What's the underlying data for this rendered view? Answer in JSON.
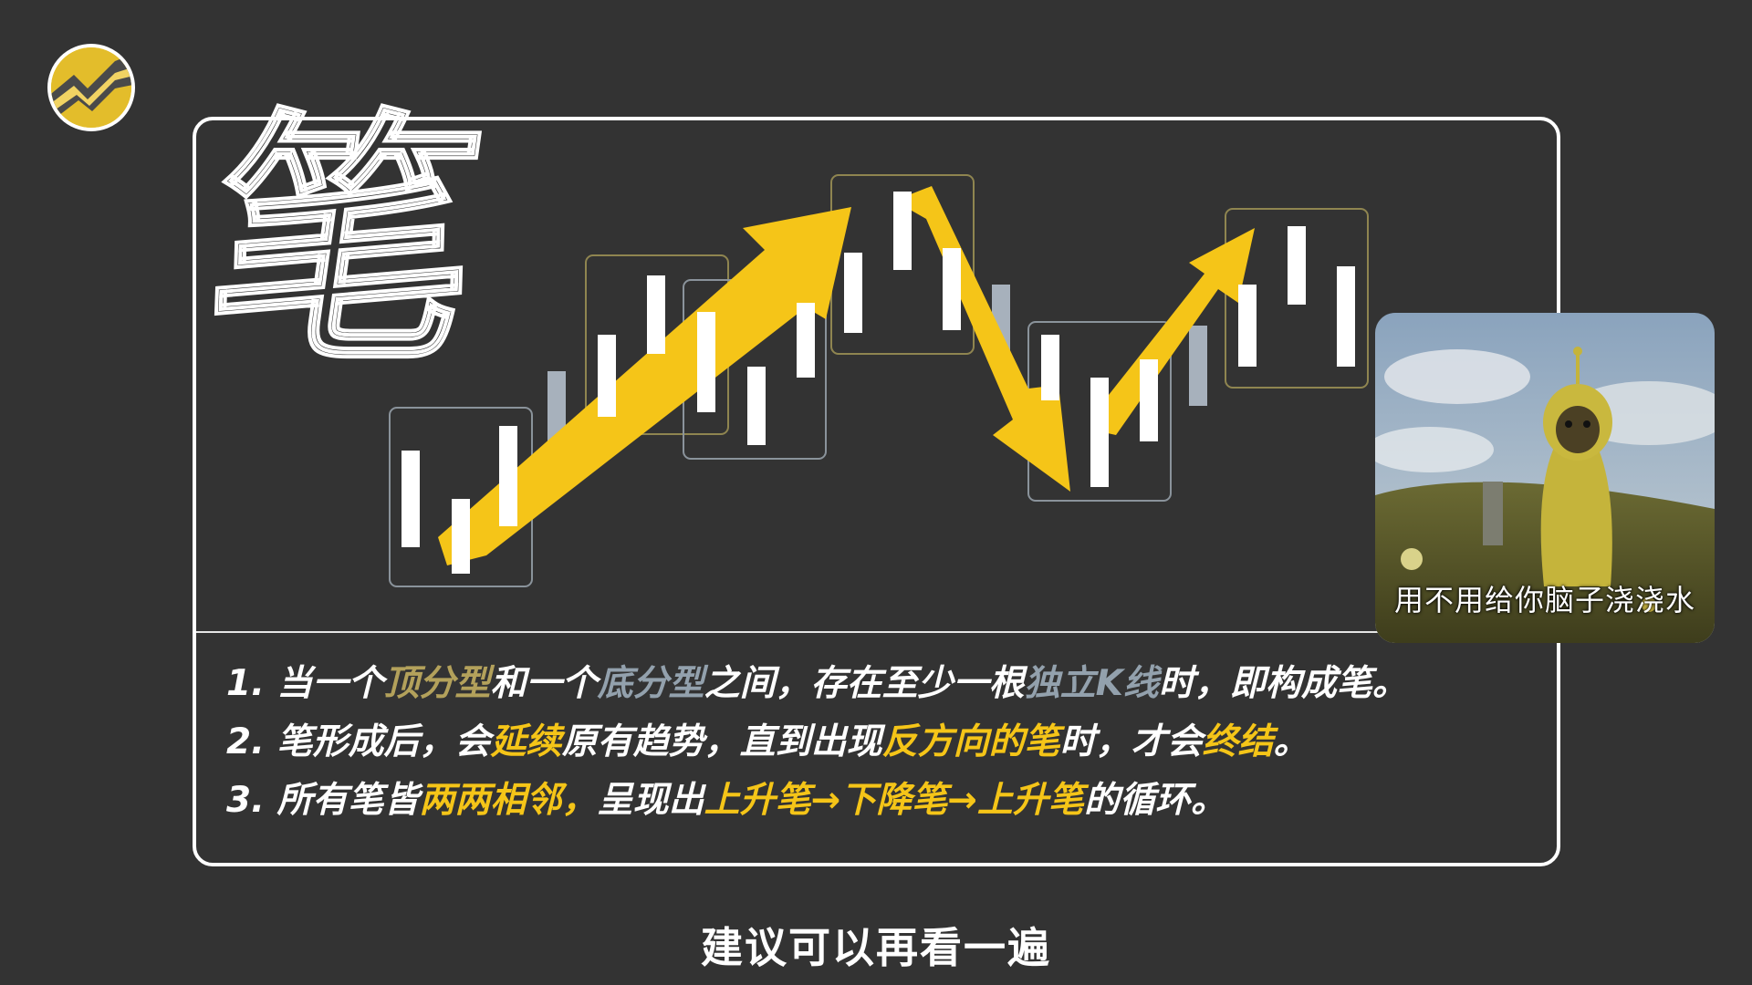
{
  "logo": {
    "icon": "zigzag-logo-icon"
  },
  "panel": {
    "big_char": "笔",
    "chart": {
      "icons": [
        "candlestick-bar",
        "fractal-box",
        "trend-arrow"
      ]
    }
  },
  "rules": [
    {
      "num": "1.",
      "parts": [
        "当一个",
        "顶分型",
        "和一个",
        "底分型",
        "之间，存在至少一根",
        "独立K线",
        "时，即构成笔。"
      ]
    },
    {
      "num": "2.",
      "parts": [
        "笔形成后，会",
        "延续",
        "原有趋势，直到出现",
        "反方向的笔",
        "时，才会",
        "终结",
        "。"
      ]
    },
    {
      "num": "3.",
      "parts": [
        "所有笔皆",
        "两两相邻，",
        "呈现出",
        "上升笔→下降笔→上升笔",
        "的循环。"
      ]
    }
  ],
  "meme": {
    "caption": "用不用给你脑子浇浇水"
  },
  "subtitle": "建议可以再看一遍",
  "colors": {
    "background": "#333333",
    "arrow": "#f5c518",
    "top_fractal": "#b3a15b",
    "bottom_fractal": "#93a1ad",
    "highlight": "#f5c518"
  }
}
